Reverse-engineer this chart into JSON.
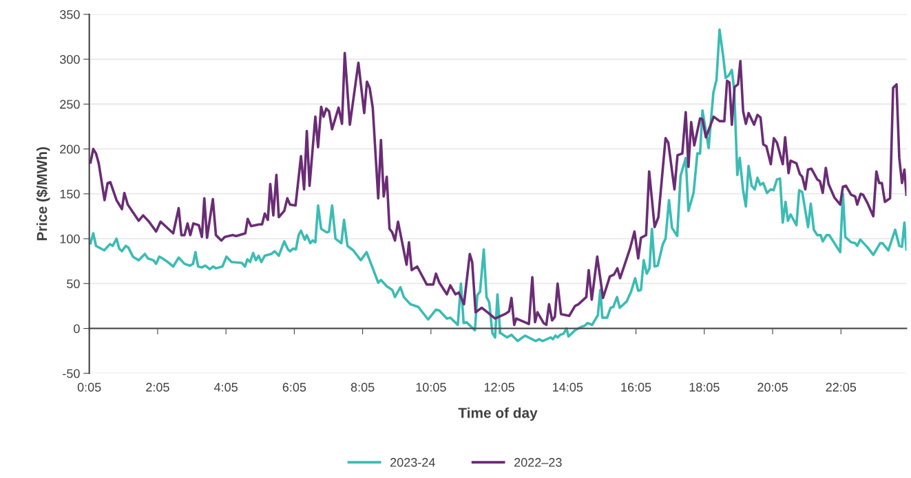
{
  "chart_data": {
    "type": "line",
    "xlabel": "Time of day",
    "ylabel": "Price ($/MWh)",
    "xlim": [
      0.0833,
      24.0
    ],
    "xticks": [
      {
        "value": 0.0833,
        "label": "0:05"
      },
      {
        "value": 2.0833,
        "label": "2:05"
      },
      {
        "value": 4.0833,
        "label": "4:05"
      },
      {
        "value": 6.0833,
        "label": "6:05"
      },
      {
        "value": 8.0833,
        "label": "8:05"
      },
      {
        "value": 10.0833,
        "label": "10:05"
      },
      {
        "value": 12.0833,
        "label": "12:05"
      },
      {
        "value": 14.0833,
        "label": "14:05"
      },
      {
        "value": 16.0833,
        "label": "16:05"
      },
      {
        "value": 18.0833,
        "label": "18:05"
      },
      {
        "value": 20.0833,
        "label": "20:05"
      },
      {
        "value": 22.0833,
        "label": "22:05"
      }
    ],
    "ylim": [
      -50,
      350
    ],
    "yticks": [
      -50,
      0,
      50,
      100,
      150,
      200,
      250,
      300,
      350
    ],
    "grid": "y",
    "legend": "bottom",
    "marker": "none",
    "line_style": "solid",
    "series": [
      {
        "name": "2023-24",
        "color": "#3bbcb4",
        "x": [
          0.12,
          0.2,
          0.28,
          0.52,
          0.69,
          0.77,
          0.88,
          0.96,
          1.04,
          1.15,
          1.23,
          1.36,
          1.53,
          1.71,
          1.8,
          1.96,
          2.04,
          2.13,
          2.23,
          2.38,
          2.54,
          2.7,
          2.87,
          3.03,
          3.12,
          3.19,
          3.27,
          3.38,
          3.48,
          3.61,
          3.71,
          3.79,
          3.98,
          4.1,
          4.25,
          4.55,
          4.64,
          4.71,
          4.79,
          4.88,
          4.96,
          5.04,
          5.12,
          5.22,
          5.41,
          5.51,
          5.63,
          5.79,
          5.9,
          5.96,
          6.05,
          6.13,
          6.21,
          6.28,
          6.39,
          6.45,
          6.55,
          6.62,
          6.7,
          6.78,
          6.87,
          7.04,
          7.1,
          7.19,
          7.29,
          7.46,
          7.54,
          7.64,
          7.81,
          8.03,
          8.2,
          8.35,
          8.54,
          8.62,
          8.79,
          8.95,
          9.03,
          9.19,
          9.29,
          9.48,
          9.71,
          10.0,
          10.23,
          10.33,
          10.55,
          10.65,
          10.87,
          10.96,
          11.04,
          11.12,
          11.37,
          11.44,
          11.52,
          11.63,
          11.71,
          11.79,
          11.88,
          11.96,
          12.03,
          12.11,
          12.31,
          12.44,
          12.62,
          12.84,
          13.15,
          13.25,
          13.35,
          13.59,
          13.65,
          13.73,
          13.79,
          13.87,
          13.96,
          14.05,
          14.11,
          14.3,
          14.5,
          14.58,
          14.67,
          14.8,
          14.97,
          15.04,
          15.1,
          15.24,
          15.34,
          15.42,
          15.53,
          15.61,
          15.81,
          15.94,
          16.06,
          16.15,
          16.23,
          16.31,
          16.4,
          16.48,
          16.55,
          16.63,
          16.72,
          16.87,
          16.95,
          17.05,
          17.14,
          17.29,
          17.39,
          17.54,
          17.62,
          17.77,
          17.88,
          17.96,
          18.03,
          18.21,
          18.35,
          18.44,
          18.53,
          18.63,
          18.71,
          18.8,
          18.89,
          18.96,
          19.05,
          19.12,
          19.22,
          19.3,
          19.38,
          19.47,
          19.56,
          19.64,
          19.72,
          19.81,
          19.92,
          20.03,
          20.11,
          20.21,
          20.3,
          20.38,
          20.46,
          20.53,
          20.61,
          20.78,
          20.86,
          20.95,
          21.12,
          21.2,
          21.29,
          21.39,
          21.49,
          21.55,
          21.66,
          21.74,
          22.06,
          22.14,
          22.21,
          22.38,
          22.5,
          22.56,
          22.65,
          22.87,
          23.03,
          23.23,
          23.3,
          23.47,
          23.67,
          23.79,
          23.87,
          23.94,
          24.0
        ],
        "values": [
          95,
          106,
          92,
          87,
          94,
          92,
          100,
          89,
          86,
          92,
          90,
          80,
          76,
          83,
          78,
          76,
          72,
          80,
          78,
          74,
          69,
          79,
          72,
          70,
          72,
          85,
          69,
          68,
          70,
          66,
          69,
          67,
          69,
          80,
          74,
          73,
          69,
          77,
          74,
          84,
          76,
          81,
          74,
          81,
          83,
          86,
          81,
          97,
          88,
          86,
          89,
          88,
          104,
          109,
          99,
          104,
          95,
          98,
          96,
          137,
          111,
          107,
          108,
          137,
          100,
          95,
          121,
          92,
          87,
          76,
          85,
          70,
          51,
          54,
          47,
          43,
          35,
          46,
          35,
          27,
          24,
          10,
          21,
          20,
          11,
          12,
          4,
          50,
          6,
          7,
          -2,
          37,
          41,
          88,
          35,
          29,
          -5,
          -10,
          38,
          -5,
          -10,
          -7,
          -14,
          -8,
          -14,
          -12,
          -14,
          -10,
          -12,
          -8,
          -10,
          -7,
          -6,
          0,
          -9,
          -2,
          2,
          3,
          6,
          4,
          15,
          43,
          12,
          12,
          23,
          24,
          35,
          23,
          30,
          41,
          56,
          42,
          43,
          76,
          61,
          67,
          111,
          69,
          70,
          94,
          100,
          143,
          112,
          103,
          170,
          190,
          131,
          151,
          195,
          195,
          243,
          201,
          263,
          277,
          333,
          305,
          279,
          282,
          288,
          265,
          171,
          190,
          154,
          136,
          181,
          159,
          155,
          168,
          160,
          162,
          151,
          155,
          154,
          166,
          167,
          118,
          141,
          120,
          127,
          115,
          154,
          152,
          113,
          139,
          110,
          104,
          104,
          97,
          104,
          104,
          85,
          150,
          102,
          96,
          95,
          92,
          99,
          90,
          82,
          95,
          95,
          87,
          110,
          92,
          91,
          118,
          88
        ]
      },
      {
        "name": "2022–23",
        "color": "#6a2c75",
        "x": [
          0.12,
          0.2,
          0.28,
          0.36,
          0.53,
          0.62,
          0.7,
          0.88,
          1.04,
          1.11,
          1.21,
          1.53,
          1.66,
          1.83,
          2.04,
          2.17,
          2.54,
          2.7,
          2.78,
          2.87,
          2.96,
          3.04,
          3.13,
          3.29,
          3.38,
          3.45,
          3.53,
          3.7,
          3.79,
          3.95,
          4.05,
          4.28,
          4.38,
          4.65,
          4.72,
          4.82,
          5.06,
          5.14,
          5.22,
          5.31,
          5.38,
          5.47,
          5.56,
          5.63,
          5.79,
          5.88,
          5.96,
          6.12,
          6.28,
          6.37,
          6.45,
          6.53,
          6.7,
          6.78,
          6.87,
          6.94,
          7.02,
          7.1,
          7.19,
          7.38,
          7.48,
          7.56,
          7.71,
          7.96,
          8.13,
          8.21,
          8.29,
          8.38,
          8.54,
          8.62,
          8.7,
          8.79,
          8.87,
          8.95,
          9.03,
          9.12,
          9.37,
          9.44,
          9.52,
          9.68,
          9.96,
          10.15,
          10.23,
          10.33,
          10.55,
          10.65,
          10.8,
          10.9,
          11.05,
          11.22,
          11.29,
          11.39,
          11.57,
          11.74,
          11.96,
          12.25,
          12.37,
          12.44,
          12.52,
          12.58,
          12.95,
          13.05,
          13.13,
          13.2,
          13.38,
          13.46,
          13.54,
          13.63,
          13.71,
          13.79,
          13.89,
          14.13,
          14.3,
          14.4,
          14.63,
          14.7,
          14.79,
          14.95,
          15.12,
          15.32,
          15.44,
          15.54,
          15.62,
          15.91,
          16.04,
          16.15,
          16.23,
          16.38,
          16.47,
          16.63,
          16.74,
          16.95,
          17.03,
          17.21,
          17.3,
          17.44,
          17.54,
          17.62,
          17.7,
          17.79,
          17.96,
          18.03,
          18.13,
          18.36,
          18.53,
          18.67,
          18.75,
          18.82,
          18.89,
          18.97,
          19.07,
          19.14,
          19.22,
          19.3,
          19.38,
          19.54,
          19.64,
          19.73,
          19.81,
          19.9,
          20.03,
          20.12,
          20.21,
          20.38,
          20.45,
          20.55,
          20.61,
          20.78,
          20.88,
          20.95,
          21.04,
          21.12,
          21.22,
          21.39,
          21.47,
          21.55,
          21.64,
          21.72,
          21.89,
          22.06,
          22.14,
          22.23,
          22.38,
          22.5,
          22.56,
          22.66,
          22.73,
          22.87,
          23.03,
          23.12,
          23.2,
          23.28,
          23.37,
          23.52,
          23.61,
          23.71,
          23.79,
          23.87,
          23.94,
          24.0
        ],
        "values": [
          185,
          200,
          195,
          184,
          143,
          162,
          163,
          143,
          133,
          151,
          138,
          120,
          126,
          119,
          108,
          119,
          106,
          134,
          104,
          104,
          117,
          104,
          117,
          115,
          102,
          145,
          101,
          144,
          104,
          98,
          102,
          104,
          103,
          106,
          122,
          114,
          116,
          116,
          128,
          121,
          161,
          126,
          171,
          124,
          131,
          145,
          138,
          137,
          192,
          155,
          220,
          159,
          236,
          202,
          247,
          236,
          245,
          242,
          222,
          246,
          228,
          307,
          227,
          296,
          240,
          275,
          268,
          246,
          145,
          210,
          147,
          169,
          111,
          107,
          98,
          119,
          71,
          96,
          65,
          69,
          49,
          49,
          61,
          51,
          38,
          48,
          38,
          40,
          27,
          83,
          74,
          18,
          23,
          18,
          11,
          16,
          19,
          34,
          4,
          11,
          5,
          57,
          7,
          18,
          6,
          4,
          27,
          9,
          13,
          50,
          16,
          14,
          25,
          27,
          35,
          65,
          32,
          80,
          34,
          58,
          60,
          67,
          56,
          89,
          108,
          78,
          101,
          104,
          175,
          113,
          124,
          212,
          207,
          155,
          193,
          195,
          241,
          180,
          230,
          204,
          234,
          233,
          213,
          236,
          231,
          231,
          276,
          274,
          227,
          269,
          272,
          298,
          242,
          228,
          240,
          227,
          238,
          235,
          205,
          203,
          183,
          212,
          207,
          183,
          213,
          173,
          187,
          184,
          172,
          169,
          155,
          177,
          178,
          166,
          164,
          151,
          179,
          161,
          146,
          138,
          158,
          159,
          149,
          147,
          138,
          150,
          149,
          139,
          125,
          175,
          162,
          162,
          141,
          145,
          268,
          272,
          190,
          162,
          177,
          149
        ]
      }
    ]
  }
}
